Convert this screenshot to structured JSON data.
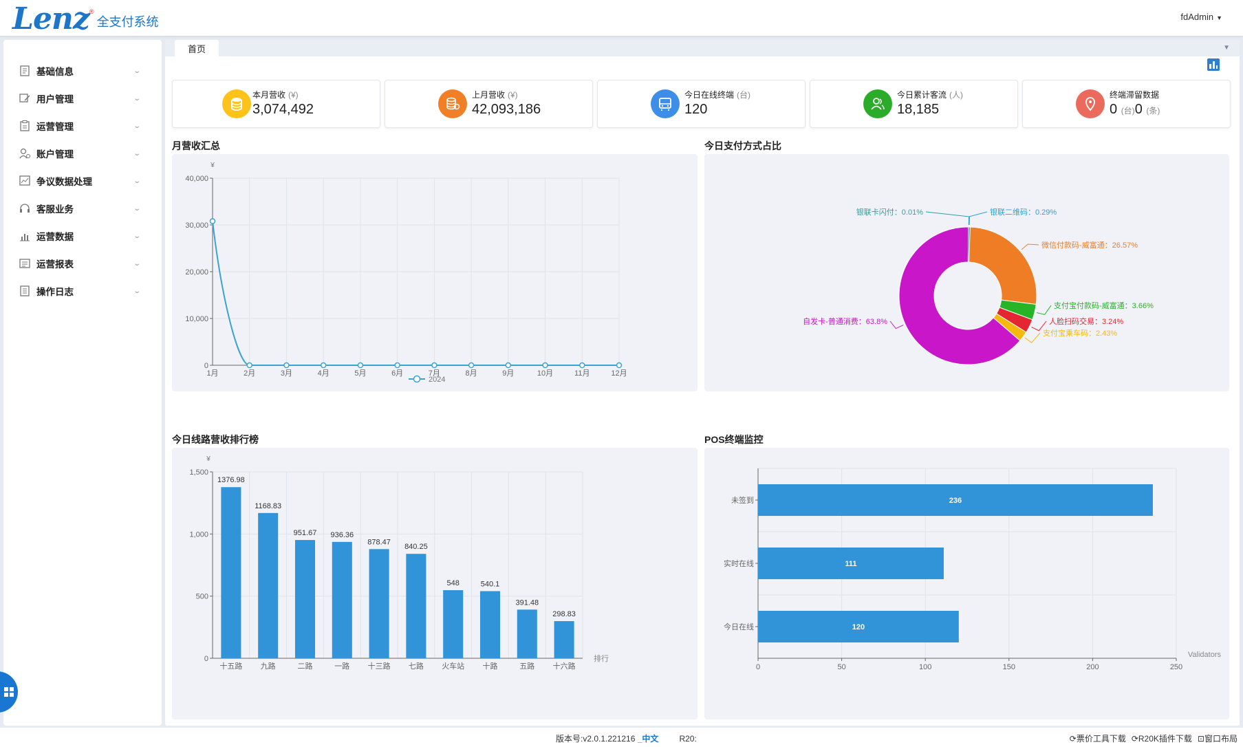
{
  "app": {
    "logo_text": "Lenz",
    "logo_sub": "全支付系统",
    "user": "fdAdmin"
  },
  "sidebar": {
    "items": [
      {
        "label": "基础信息",
        "icon": "document-icon"
      },
      {
        "label": "用户管理",
        "icon": "user-edit-icon"
      },
      {
        "label": "运营管理",
        "icon": "clipboard-icon"
      },
      {
        "label": "账户管理",
        "icon": "account-icon"
      },
      {
        "label": "争议数据处理",
        "icon": "chart-doc-icon"
      },
      {
        "label": "客服业务",
        "icon": "headset-icon"
      },
      {
        "label": "运营数据",
        "icon": "bar-chart-icon"
      },
      {
        "label": "运营报表",
        "icon": "report-icon"
      },
      {
        "label": "操作日志",
        "icon": "log-icon"
      }
    ]
  },
  "tabs": [
    {
      "label": "首页"
    }
  ],
  "stats": [
    {
      "title": "本月营收",
      "unit": "(¥)",
      "value": "3,074,492",
      "color": "#fdc31b",
      "icon": "coins-stack-icon"
    },
    {
      "title": "上月营收",
      "unit": "(¥)",
      "value": "42,093,186",
      "color": "#f08028",
      "icon": "coins-icon"
    },
    {
      "title": "今日在线终端",
      "unit": "(台)",
      "value": "120",
      "color": "#3d8ee8",
      "icon": "bus-terminal-icon"
    },
    {
      "title": "今日累计客流",
      "unit": "(人)",
      "value": "18,185",
      "color": "#2aab2a",
      "icon": "users-icon"
    },
    {
      "title": "终端滞留数据",
      "unit": "",
      "value_a": "0",
      "unit_a": "(台)",
      "value_b": "0",
      "unit_b": "(条)",
      "color": "#ec6a5c",
      "icon": "location-pin-icon"
    }
  ],
  "panels": {
    "monthly": "月营收汇总",
    "payment": "今日支付方式占比",
    "routes": "今日线路营收排行榜",
    "pos": "POS终端监控"
  },
  "chart_data": [
    {
      "type": "line",
      "ylabel": "¥",
      "categories": [
        "1月",
        "2月",
        "3月",
        "4月",
        "5月",
        "6月",
        "7月",
        "8月",
        "9月",
        "10月",
        "11月",
        "12月"
      ],
      "series": [
        {
          "name": "2024",
          "values": [
            30800,
            0,
            0,
            0,
            0,
            0,
            0,
            0,
            0,
            0,
            0,
            0
          ],
          "color": "#3aa3d0"
        }
      ],
      "ylim": [
        0,
        40000
      ],
      "yticks": [
        0,
        10000,
        20000,
        30000,
        40000
      ],
      "ytick_labels": [
        "0",
        "10,000",
        "20,000",
        "30,000",
        "40,000"
      ],
      "grid": true,
      "legend": "bottom"
    },
    {
      "type": "pie",
      "donut": true,
      "slices": [
        {
          "label": "银联二维码：0.29%",
          "value": 0.29,
          "color": "#2f9fd8"
        },
        {
          "label": "微信付款码-威富通：26.57%",
          "value": 26.57,
          "color": "#ee7d26"
        },
        {
          "label": "支付宝付款码-威富通：3.66%",
          "value": 3.66,
          "color": "#27b427"
        },
        {
          "label": "人脸扫码交易：3.24%",
          "value": 3.24,
          "color": "#e32632"
        },
        {
          "label": "支付宝乘车码：2.43%",
          "value": 2.43,
          "color": "#f5b90d"
        },
        {
          "label": "自发卡-普通消费：63.8%",
          "value": 63.8,
          "color": "#c816c8"
        },
        {
          "label": "银联卡闪付：0.01%",
          "value": 0.01,
          "color": "#2fa0a0"
        }
      ]
    },
    {
      "type": "bar",
      "ylabel": "¥",
      "xlabel": "排行",
      "categories": [
        "十五路",
        "九路",
        "二路",
        "一路",
        "十三路",
        "七路",
        "火车站",
        "十路",
        "五路",
        "十六路"
      ],
      "values": [
        1376.98,
        1168.83,
        951.67,
        936.36,
        878.47,
        840.25,
        548,
        540.1,
        391.48,
        298.83
      ],
      "value_labels": [
        "1376.98",
        "1168.83",
        "951.67",
        "936.36",
        "878.47",
        "840.25",
        "548",
        "540.1",
        "391.48",
        "298.83"
      ],
      "ylim": [
        0,
        1500
      ],
      "yticks": [
        0,
        500,
        1000,
        1500
      ],
      "ytick_labels": [
        "0",
        "500",
        "1,000",
        "1,500"
      ],
      "color": "#3294d8"
    },
    {
      "type": "bar",
      "orientation": "horizontal",
      "xlabel": "Validators",
      "categories": [
        "未签到",
        "实时在线",
        "今日在线"
      ],
      "values": [
        236,
        111,
        120
      ],
      "value_labels": [
        "236",
        "111",
        "120"
      ],
      "xlim": [
        0,
        250
      ],
      "xticks": [
        0,
        50,
        100,
        150,
        200,
        250
      ],
      "xtick_labels": [
        "0",
        "50",
        "100",
        "150",
        "200",
        "250"
      ],
      "color": "#3294d8"
    }
  ],
  "footer": {
    "version_prefix": "版本号:v2.0.1.221216",
    "lang": "_中文",
    "r20": "R20:",
    "links": [
      "票价工具下载",
      "R20K插件下载",
      "窗口布局"
    ]
  }
}
